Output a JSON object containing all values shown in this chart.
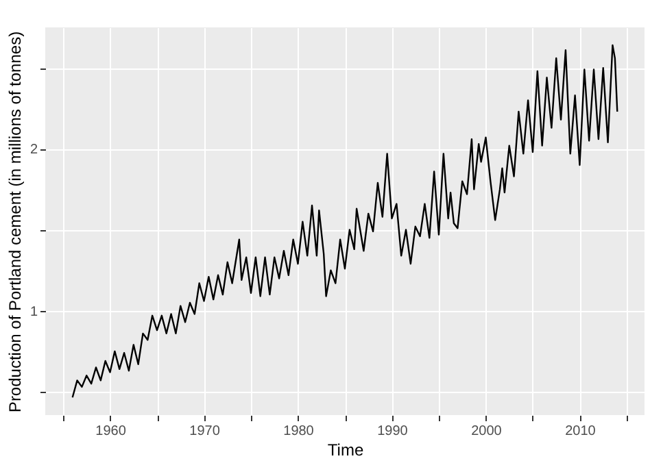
{
  "chart_data": {
    "type": "line",
    "xlabel": "Time",
    "ylabel": "Production of Portland cement (in millions of tonnes)",
    "xlim": [
      1953.1,
      2016.9
    ],
    "ylim": [
      0.356,
      2.75
    ],
    "xticks": [
      {
        "value": 1955,
        "label": null
      },
      1960,
      {
        "value": 1965,
        "label": null
      },
      1970,
      {
        "value": 1975,
        "label": null
      },
      1980,
      {
        "value": 1985,
        "label": null
      },
      1990,
      {
        "value": 1995,
        "label": null
      },
      2000,
      {
        "value": 2005,
        "label": null
      },
      2010,
      {
        "value": 2015,
        "label": null
      }
    ],
    "yticks": [
      {
        "value": 0.5,
        "label": null
      },
      1,
      {
        "value": 1.5,
        "label": null
      },
      2,
      {
        "value": 2.5,
        "label": null
      }
    ],
    "grid": true,
    "legend": false,
    "marker": "none",
    "line_style": "solid",
    "series": [
      {
        "color": "#000000",
        "x": [
          1956.0,
          1956.5,
          1957.0,
          1957.5,
          1958.0,
          1958.5,
          1959.0,
          1959.5,
          1960.0,
          1960.5,
          1961.0,
          1961.5,
          1962.0,
          1962.5,
          1963.0,
          1963.5,
          1964.0,
          1964.5,
          1965.0,
          1965.5,
          1966.0,
          1966.5,
          1967.0,
          1967.5,
          1968.0,
          1968.5,
          1969.0,
          1969.5,
          1970.0,
          1970.5,
          1971.0,
          1971.5,
          1972.0,
          1972.5,
          1973.0,
          1973.75,
          1974.0,
          1974.5,
          1975.0,
          1975.5,
          1976.0,
          1976.5,
          1977.0,
          1977.5,
          1978.0,
          1978.5,
          1979.0,
          1979.5,
          1980.0,
          1980.5,
          1981.0,
          1981.5,
          1982.0,
          1982.25,
          1982.75,
          1983.0,
          1983.5,
          1984.0,
          1984.5,
          1985.0,
          1985.5,
          1986.0,
          1986.25,
          1987.0,
          1987.5,
          1988.0,
          1988.5,
          1989.0,
          1989.5,
          1990.0,
          1990.5,
          1991.0,
          1991.5,
          1992.0,
          1992.5,
          1993.0,
          1993.5,
          1994.0,
          1994.5,
          1995.0,
          1995.5,
          1996.0,
          1996.25,
          1996.6,
          1997.0,
          1997.5,
          1998.0,
          1998.5,
          1998.75,
          1999.25,
          1999.5,
          2000.0,
          2000.5,
          2001.0,
          2001.5,
          2001.75,
          2002.0,
          2002.5,
          2003.0,
          2003.5,
          2004.0,
          2004.5,
          2005.0,
          2005.5,
          2006.0,
          2006.5,
          2007.0,
          2007.5,
          2008.0,
          2008.5,
          2009.0,
          2009.5,
          2010.0,
          2010.5,
          2011.0,
          2011.5,
          2012.0,
          2012.5,
          2013.0,
          2013.5,
          2013.75,
          2014.0
        ],
        "values": [
          0.465,
          0.57,
          0.53,
          0.6,
          0.55,
          0.65,
          0.57,
          0.69,
          0.62,
          0.75,
          0.64,
          0.74,
          0.63,
          0.79,
          0.67,
          0.86,
          0.82,
          0.97,
          0.88,
          0.97,
          0.86,
          0.98,
          0.86,
          1.03,
          0.93,
          1.05,
          0.98,
          1.17,
          1.06,
          1.21,
          1.07,
          1.22,
          1.1,
          1.3,
          1.17,
          1.44,
          1.19,
          1.33,
          1.11,
          1.33,
          1.09,
          1.33,
          1.1,
          1.33,
          1.2,
          1.37,
          1.22,
          1.44,
          1.29,
          1.55,
          1.34,
          1.65,
          1.34,
          1.62,
          1.35,
          1.09,
          1.25,
          1.17,
          1.44,
          1.26,
          1.5,
          1.38,
          1.63,
          1.37,
          1.6,
          1.49,
          1.79,
          1.58,
          1.97,
          1.57,
          1.66,
          1.34,
          1.5,
          1.29,
          1.52,
          1.46,
          1.66,
          1.45,
          1.86,
          1.47,
          1.97,
          1.57,
          1.73,
          1.54,
          1.51,
          1.8,
          1.72,
          2.06,
          1.75,
          2.03,
          1.92,
          2.07,
          1.8,
          1.56,
          1.75,
          1.88,
          1.73,
          2.02,
          1.83,
          2.23,
          1.97,
          2.3,
          1.98,
          2.48,
          2.02,
          2.44,
          2.13,
          2.56,
          2.18,
          2.61,
          1.97,
          2.33,
          1.9,
          2.49,
          2.05,
          2.49,
          2.06,
          2.5,
          2.04,
          2.64,
          2.56,
          2.23
        ]
      }
    ]
  }
}
